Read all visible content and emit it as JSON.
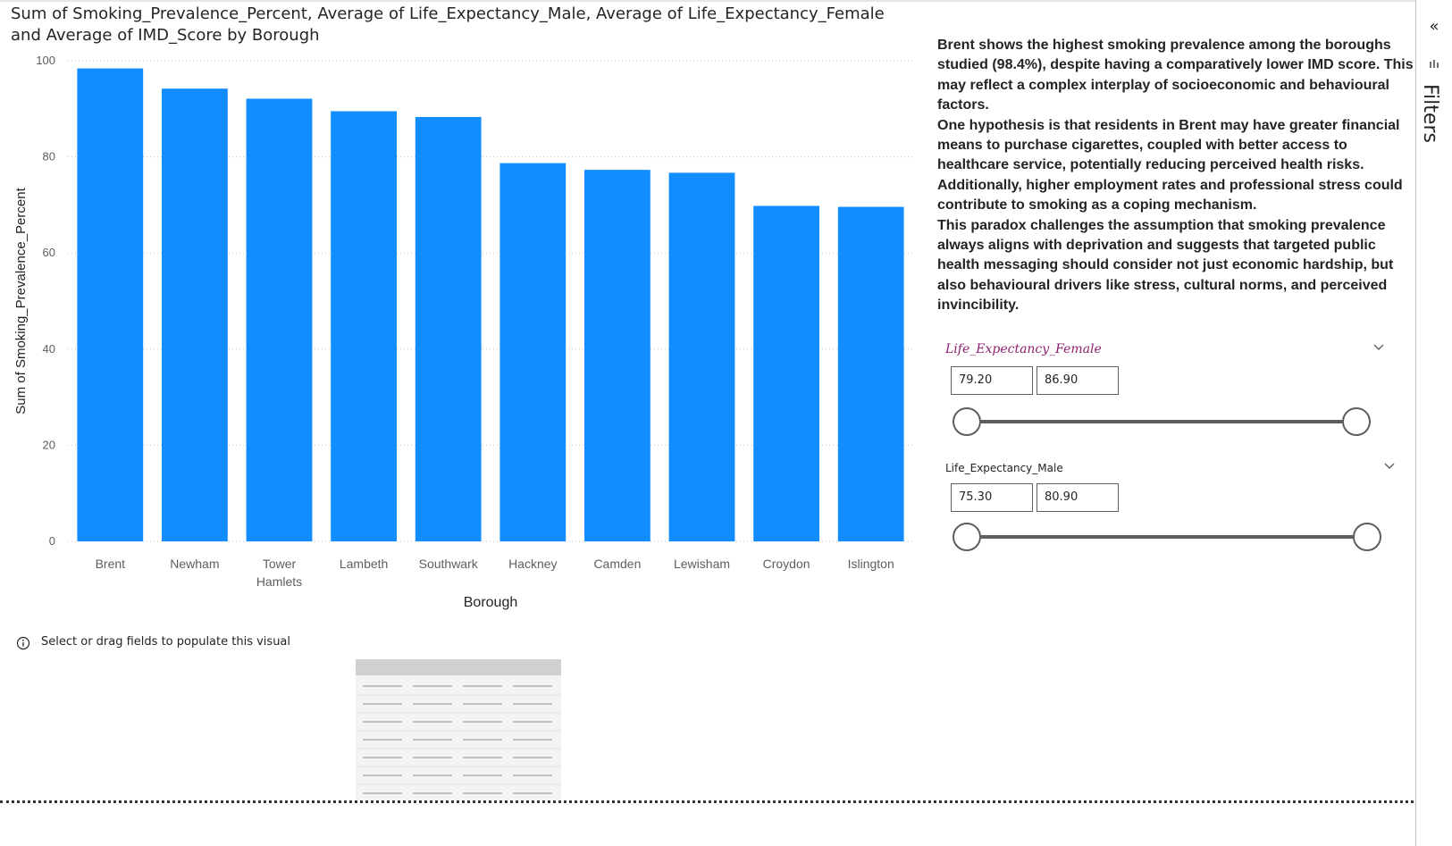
{
  "chart": {
    "title": "Sum of Smoking_Prevalence_Percent, Average of Life_Expectancy_Male, Average of Life_Expectancy_Female and Average of IMD_Score by Borough"
  },
  "chart_data": {
    "type": "bar",
    "title": "Sum of Smoking_Prevalence_Percent, Average of Life_Expectancy_Male, Average of Life_Expectancy_Female and Average of IMD_Score by Borough",
    "xlabel": "Borough",
    "ylabel": "Sum of Smoking_Prevalence_Percent",
    "categories": [
      "Brent",
      "Newham",
      "Tower Hamlets",
      "Lambeth",
      "Southwark",
      "Hackney",
      "Camden",
      "Lewisham",
      "Croydon",
      "Islington"
    ],
    "category_lines": [
      [
        "Brent"
      ],
      [
        "Newham"
      ],
      [
        "Tower",
        "Hamlets"
      ],
      [
        "Lambeth"
      ],
      [
        "Southwark"
      ],
      [
        "Hackney"
      ],
      [
        "Camden"
      ],
      [
        "Lewisham"
      ],
      [
        "Croydon"
      ],
      [
        "Islington"
      ]
    ],
    "values": [
      98.4,
      94.2,
      92.1,
      89.5,
      88.3,
      78.7,
      77.3,
      76.7,
      69.8,
      69.6
    ],
    "ylim": [
      0,
      100
    ],
    "yticks": [
      0,
      20,
      40,
      60,
      80,
      100
    ],
    "grid": true,
    "bar_color": "#118dff"
  },
  "narrative": {
    "paragraphs": [
      "Brent shows the highest smoking prevalence among the boroughs studied (98.4%), despite having a comparatively lower IMD score. This may reflect a complex interplay of socioeconomic and behavioural factors.",
      "One hypothesis is that residents in Brent may have greater financial means to purchase cigarettes, coupled with better access to healthcare service, potentially reducing perceived health risks. Additionally, higher employment rates and professional stress could contribute to smoking as a coping mechanism.",
      "This paradox challenges the assumption that smoking prevalence always aligns with deprivation and suggests that targeted public health messaging should consider not just economic hardship, but also behavioural drivers like stress, cultural norms, and perceived invincibility."
    ]
  },
  "slicers": {
    "female": {
      "title": "Life_Expectancy_Female",
      "min": "79.20",
      "max": "86.90",
      "title_color": "#8e1f6e"
    },
    "male": {
      "title": "Life_Expectancy_Male",
      "min": "75.30",
      "max": "80.90"
    }
  },
  "empty_visual": {
    "message": "Select or drag fields to populate this visual",
    "icon": "info-icon"
  },
  "filters_pane": {
    "label": "Filters",
    "collapse_glyph": "«",
    "icons": [
      "collapse-icon",
      "filter-icon"
    ]
  },
  "colors": {
    "accent": "#118dff",
    "slider": "#605e5c",
    "female_title": "#8e1f6e"
  }
}
